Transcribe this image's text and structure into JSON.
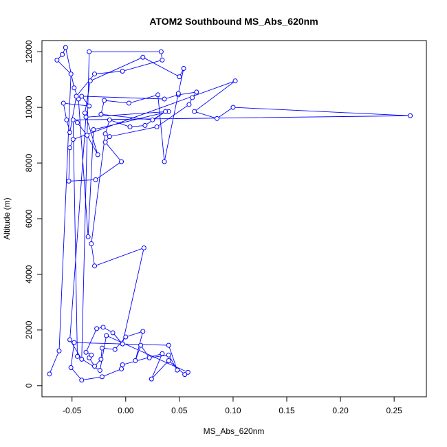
{
  "chart_data": {
    "type": "line",
    "title": "ATOM2 Southbound MS_Abs_620nm",
    "xlabel": "MS_Abs_620nm",
    "ylabel": "Altitude (m)",
    "xlim": [
      -0.078,
      0.28
    ],
    "ylim": [
      -400,
      12400
    ],
    "x_ticks": [
      -0.05,
      0.0,
      0.05,
      0.1,
      0.15,
      0.2,
      0.25
    ],
    "x_tick_labels": [
      "-0.05",
      "0.00",
      "0.05",
      "0.10",
      "0.15",
      "0.20",
      "0.25"
    ],
    "y_ticks": [
      0,
      2000,
      4000,
      6000,
      8000,
      10000,
      12000
    ],
    "y_tick_labels": [
      "0",
      "2000",
      "4000",
      "6000",
      "8000",
      "10000",
      "12000"
    ],
    "grid": false,
    "legend": "none",
    "series_color": "#0000ff",
    "series": [
      {
        "marker": "open-circle",
        "points": [
          [
            -0.071,
            420
          ],
          [
            -0.062,
            1250
          ],
          [
            -0.051,
            11200
          ],
          [
            -0.064,
            11700
          ],
          [
            -0.059,
            11900
          ],
          [
            -0.056,
            12150
          ],
          [
            -0.048,
            10700
          ],
          [
            -0.044,
            10300
          ],
          [
            -0.035,
            5350
          ],
          [
            -0.03,
            9200
          ],
          [
            0.04,
            9850
          ],
          [
            -0.037,
            9650
          ],
          [
            -0.052,
            1650
          ],
          [
            -0.041,
            950
          ],
          [
            -0.034,
            12000
          ],
          [
            0.033,
            12000
          ],
          [
            0.034,
            11700
          ],
          [
            -0.003,
            11300
          ],
          [
            -0.029,
            11200
          ],
          [
            -0.046,
            10400
          ],
          [
            -0.052,
            9100
          ],
          [
            -0.055,
            9550
          ],
          [
            -0.058,
            10150
          ],
          [
            -0.034,
            10050
          ],
          [
            -0.041,
            10400
          ],
          [
            0.036,
            10300
          ],
          [
            0.049,
            10450
          ],
          [
            0.066,
            10550
          ],
          [
            0.062,
            10350
          ],
          [
            0.059,
            10100
          ],
          [
            0.029,
            9300
          ],
          [
            -0.015,
            8950
          ],
          [
            -0.019,
            8750
          ],
          [
            -0.004,
            8050
          ],
          [
            -0.028,
            7400
          ],
          [
            -0.053,
            7350
          ],
          [
            -0.052,
            8550
          ],
          [
            -0.049,
            8850
          ],
          [
            0.102,
            10950
          ],
          [
            0.064,
            9850
          ],
          [
            0.085,
            9600
          ],
          [
            0.1,
            10000
          ],
          [
            0.265,
            9700
          ],
          [
            -0.049,
            9550
          ],
          [
            -0.045,
            1050
          ],
          [
            -0.024,
            550
          ],
          [
            -0.018,
            1800
          ],
          [
            0.058,
            480
          ],
          [
            0.055,
            400
          ],
          [
            0.04,
            900
          ],
          [
            0.024,
            240
          ],
          [
            0.034,
            1150
          ],
          [
            -0.003,
            750
          ],
          [
            -0.004,
            600
          ],
          [
            -0.022,
            320
          ],
          [
            -0.041,
            200
          ],
          [
            -0.051,
            650
          ],
          [
            -0.048,
            1550
          ],
          [
            0.04,
            1450
          ],
          [
            0.048,
            560
          ],
          [
            0.04,
            1100
          ],
          [
            0.022,
            1000
          ],
          [
            0.014,
            1450
          ],
          [
            0.009,
            900
          ],
          [
            0.016,
            1950
          ],
          [
            0.0,
            1750
          ],
          [
            -0.01,
            1300
          ],
          [
            -0.022,
            1350
          ],
          [
            -0.023,
            950
          ],
          [
            -0.029,
            700
          ],
          [
            -0.034,
            1000
          ],
          [
            -0.032,
            1100
          ],
          [
            -0.037,
            1200
          ],
          [
            -0.027,
            2050
          ],
          [
            -0.021,
            2100
          ],
          [
            -0.012,
            1900
          ],
          [
            -0.003,
            1500
          ],
          [
            0.017,
            4950
          ],
          [
            -0.029,
            4300
          ],
          [
            -0.032,
            5100
          ],
          [
            -0.019,
            9050
          ],
          [
            -0.015,
            9550
          ],
          [
            0.004,
            9300
          ],
          [
            0.018,
            9350
          ],
          [
            0.037,
            9850
          ],
          [
            0.025,
            9550
          ],
          [
            -0.023,
            9750
          ],
          [
            -0.02,
            10250
          ],
          [
            0.003,
            10150
          ],
          [
            0.03,
            10450
          ],
          [
            0.036,
            8050
          ],
          [
            0.049,
            10500
          ],
          [
            0.054,
            11400
          ],
          [
            0.05,
            11100
          ],
          [
            0.016,
            11800
          ],
          [
            -0.033,
            10950
          ],
          [
            -0.038,
            9800
          ],
          [
            -0.026,
            8300
          ],
          [
            -0.036,
            9000
          ],
          [
            -0.045,
            9450
          ]
        ]
      }
    ]
  }
}
